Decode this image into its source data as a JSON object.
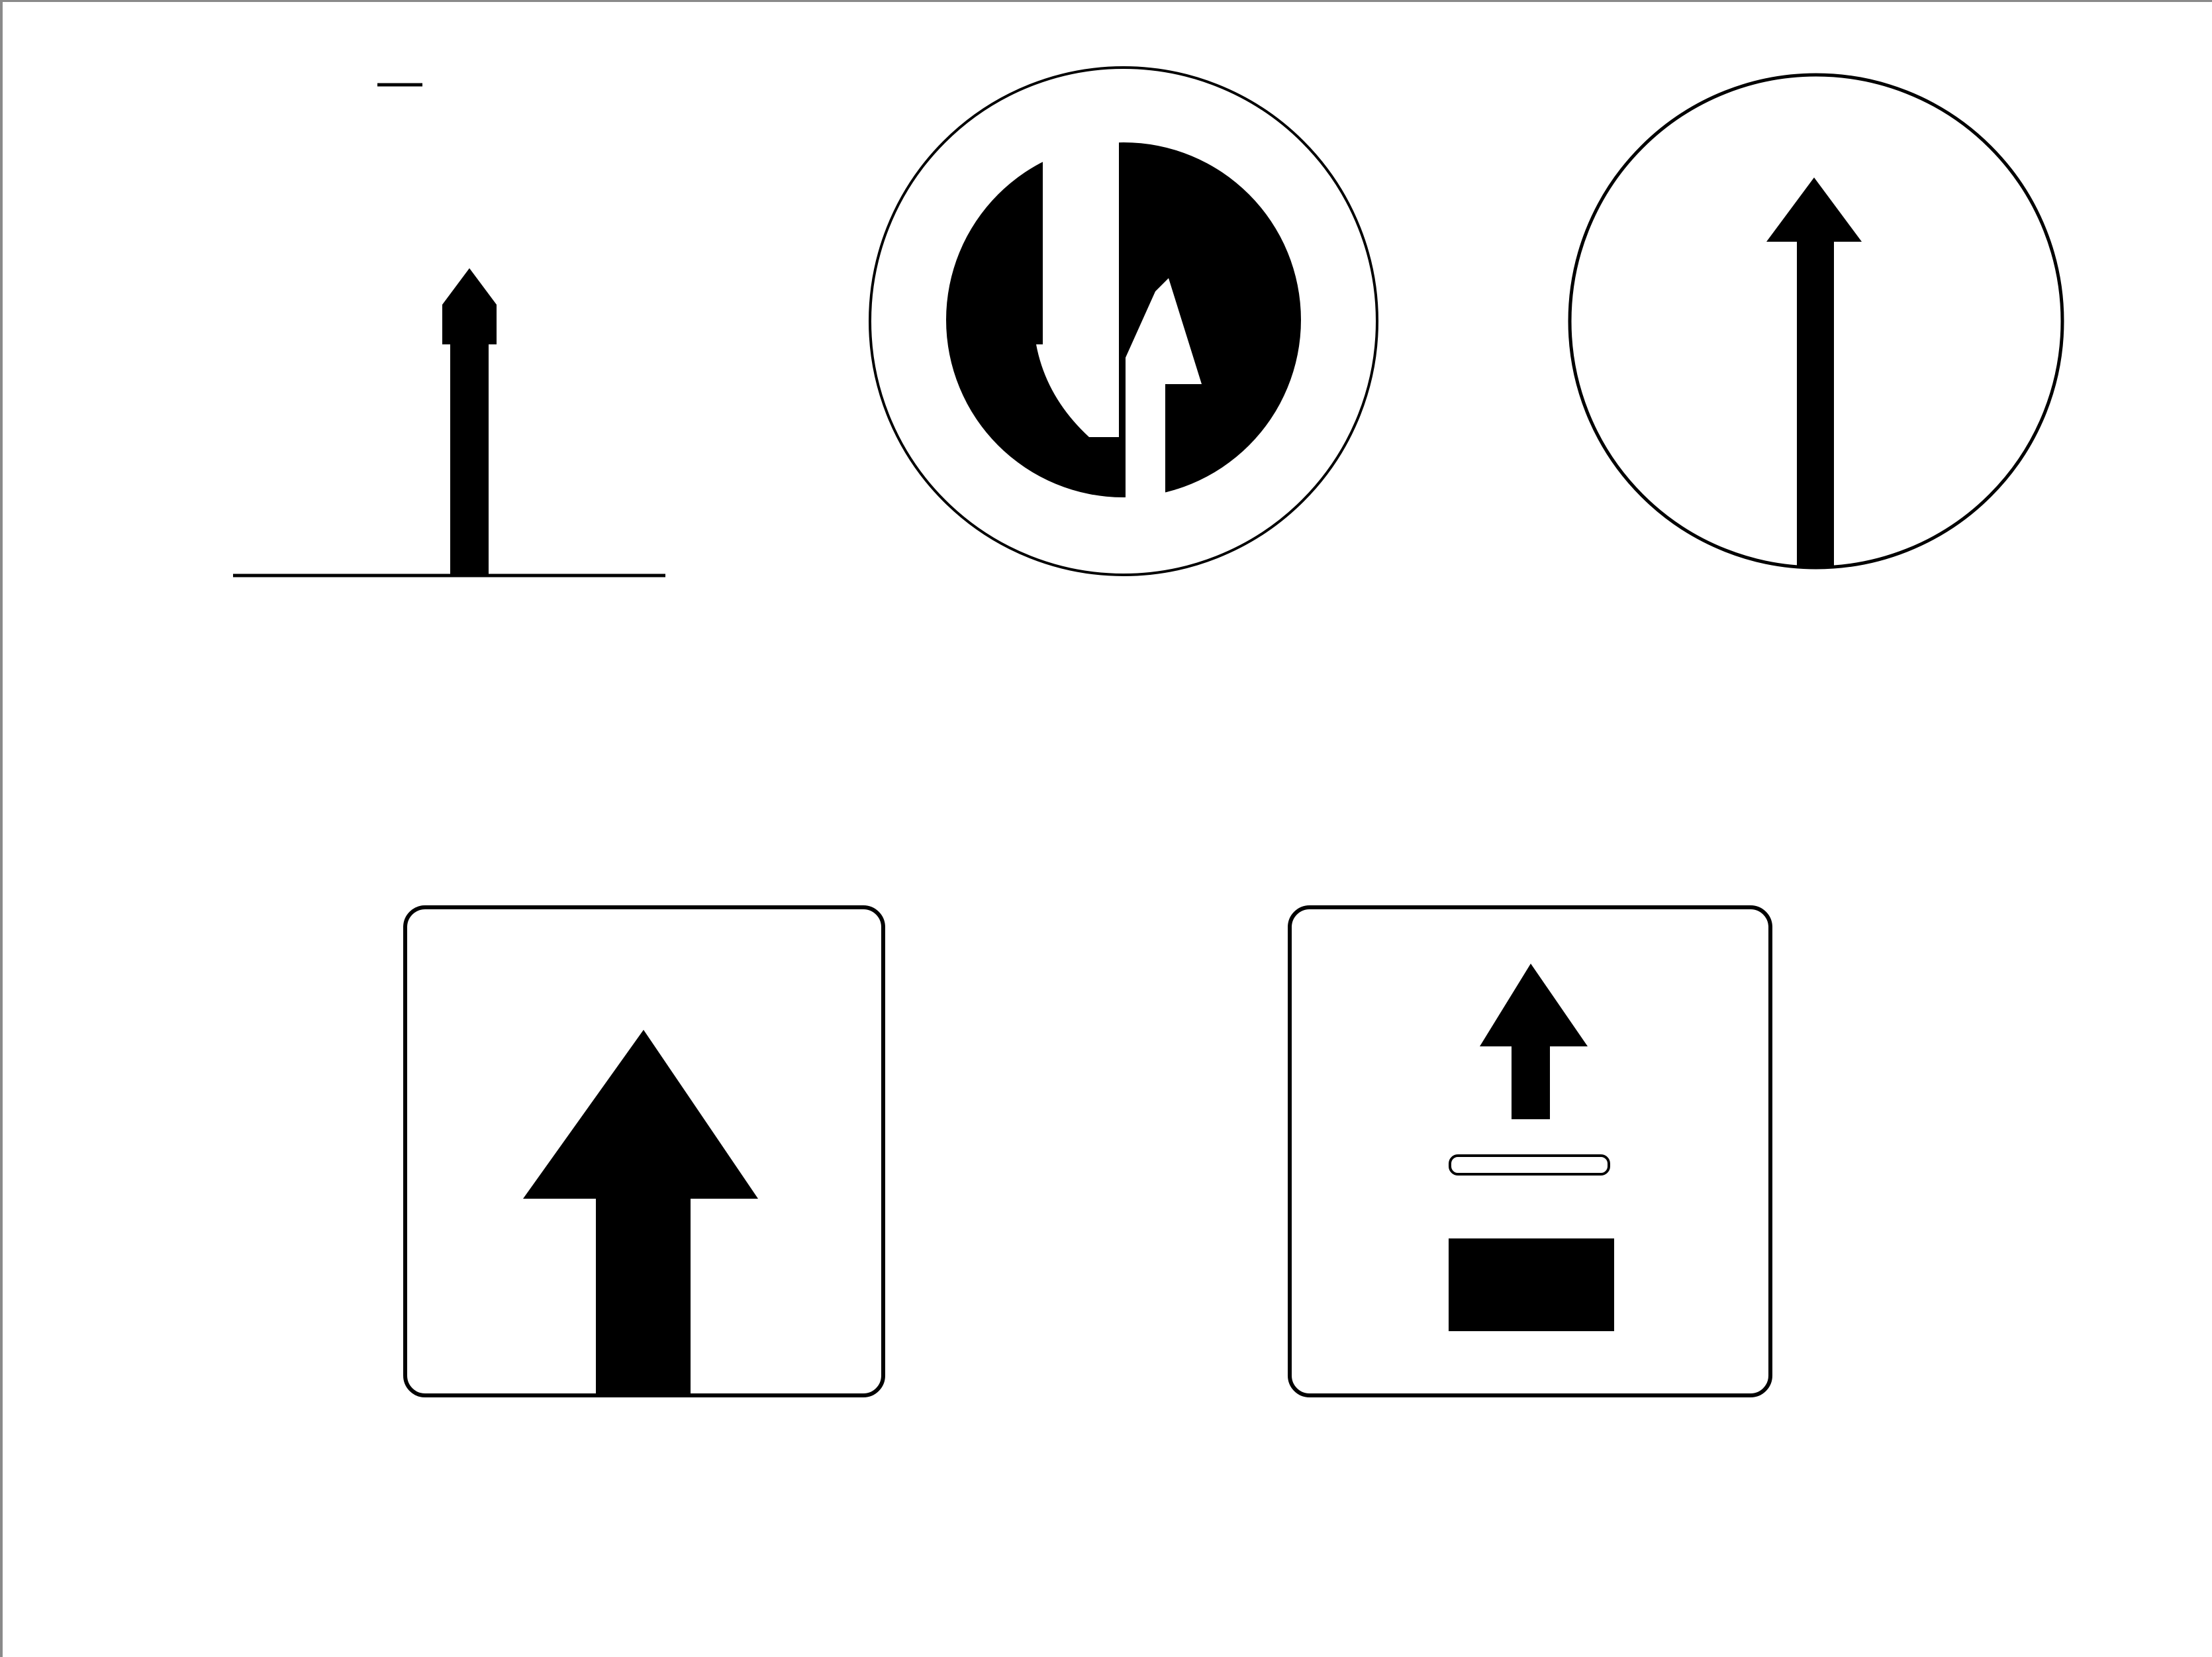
{
  "colors": {
    "background": "#ffffff",
    "sign_ink": "#000000",
    "frame": "#8a8a8a"
  },
  "signs": [
    {
      "icon": "one-way-arrow-icon"
    },
    {
      "icon": "two-way-traffic-icon"
    },
    {
      "icon": "straight-ahead-only-icon"
    },
    {
      "icon": "one-way-street-icon"
    },
    {
      "icon": "dead-end-ahead-icon"
    }
  ]
}
